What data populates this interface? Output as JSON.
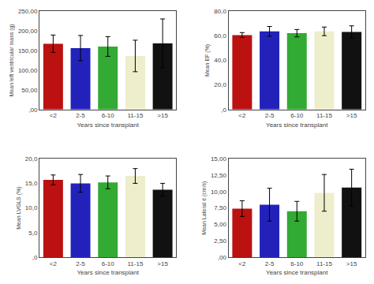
{
  "chart_data": [
    {
      "type": "bar",
      "categories": [
        "<2",
        "2-5",
        "6-10",
        "11-15",
        ">15"
      ],
      "values": [
        167,
        156,
        160,
        136,
        168
      ],
      "errors": [
        22,
        32,
        25,
        40,
        62
      ],
      "colors": [
        "#bb1111",
        "#2222bb",
        "#33aa33",
        "#eeeecc",
        "#111111"
      ],
      "x_label": "Years since transplant",
      "y_label": "Mean left ventricular mass (g)",
      "ylim": [
        0,
        250
      ],
      "yticks": [
        {
          "value": 0,
          "label": ",00"
        },
        {
          "value": 50,
          "label": "50,00"
        },
        {
          "value": 100,
          "label": "100,00"
        },
        {
          "value": 150,
          "label": "150,00"
        },
        {
          "value": 200,
          "label": "200,00"
        },
        {
          "value": 250,
          "label": "250,00"
        }
      ],
      "grid": false
    },
    {
      "type": "bar",
      "categories": [
        "<2",
        "2-5",
        "6-10",
        "11-15",
        ">15"
      ],
      "values": [
        60.5,
        63.5,
        62.0,
        63.5,
        63.0
      ],
      "errors": [
        2.0,
        4.0,
        3.0,
        3.5,
        5.0
      ],
      "colors": [
        "#bb1111",
        "#2222bb",
        "#33aa33",
        "#eeeecc",
        "#111111"
      ],
      "x_label": "Years since transplant",
      "y_label": "Mean EF (%)",
      "ylim": [
        0,
        80
      ],
      "yticks": [
        {
          "value": 0,
          "label": ",0"
        },
        {
          "value": 20,
          "label": "20,0"
        },
        {
          "value": 40,
          "label": "40,0"
        },
        {
          "value": 60,
          "label": "60,0"
        },
        {
          "value": 80,
          "label": "80,0"
        }
      ],
      "grid": false
    },
    {
      "type": "bar",
      "categories": [
        "<2",
        "2-5",
        "6-10",
        "11-15",
        ">15"
      ],
      "values": [
        15.7,
        15.0,
        15.2,
        16.5,
        13.7
      ],
      "errors": [
        1.0,
        1.8,
        1.3,
        1.5,
        1.3
      ],
      "colors": [
        "#bb1111",
        "#2222bb",
        "#33aa33",
        "#eeeecc",
        "#111111"
      ],
      "x_label": "Years since transplant",
      "y_label": "Mean LVGLS (%)",
      "ylim": [
        0,
        20
      ],
      "yticks": [
        {
          "value": 0,
          "label": ",0"
        },
        {
          "value": 5,
          "label": "5,0"
        },
        {
          "value": 10,
          "label": "10,0"
        },
        {
          "value": 15,
          "label": "15,0"
        },
        {
          "value": 20,
          "label": "20,0"
        }
      ],
      "grid": false
    },
    {
      "type": "bar",
      "categories": [
        "<2",
        "2-5",
        "6-10",
        "11-15",
        ">15"
      ],
      "values": [
        7.4,
        8.0,
        7.0,
        9.8,
        10.6
      ],
      "errors": [
        1.2,
        2.5,
        1.5,
        2.8,
        2.8
      ],
      "colors": [
        "#bb1111",
        "#2222bb",
        "#33aa33",
        "#eeeecc",
        "#111111"
      ],
      "x_label": "Years since transplant",
      "y_label": "Mean Lateral é (cm/s)",
      "ylim": [
        0,
        15
      ],
      "yticks": [
        {
          "value": 0,
          "label": ",00"
        },
        {
          "value": 2.5,
          "label": "2,50"
        },
        {
          "value": 5.0,
          "label": "5,00"
        },
        {
          "value": 7.5,
          "label": "7,50"
        },
        {
          "value": 10.0,
          "label": "10,00"
        },
        {
          "value": 12.5,
          "label": "12,50"
        },
        {
          "value": 15,
          "label": "15,00"
        }
      ],
      "grid": false
    }
  ]
}
